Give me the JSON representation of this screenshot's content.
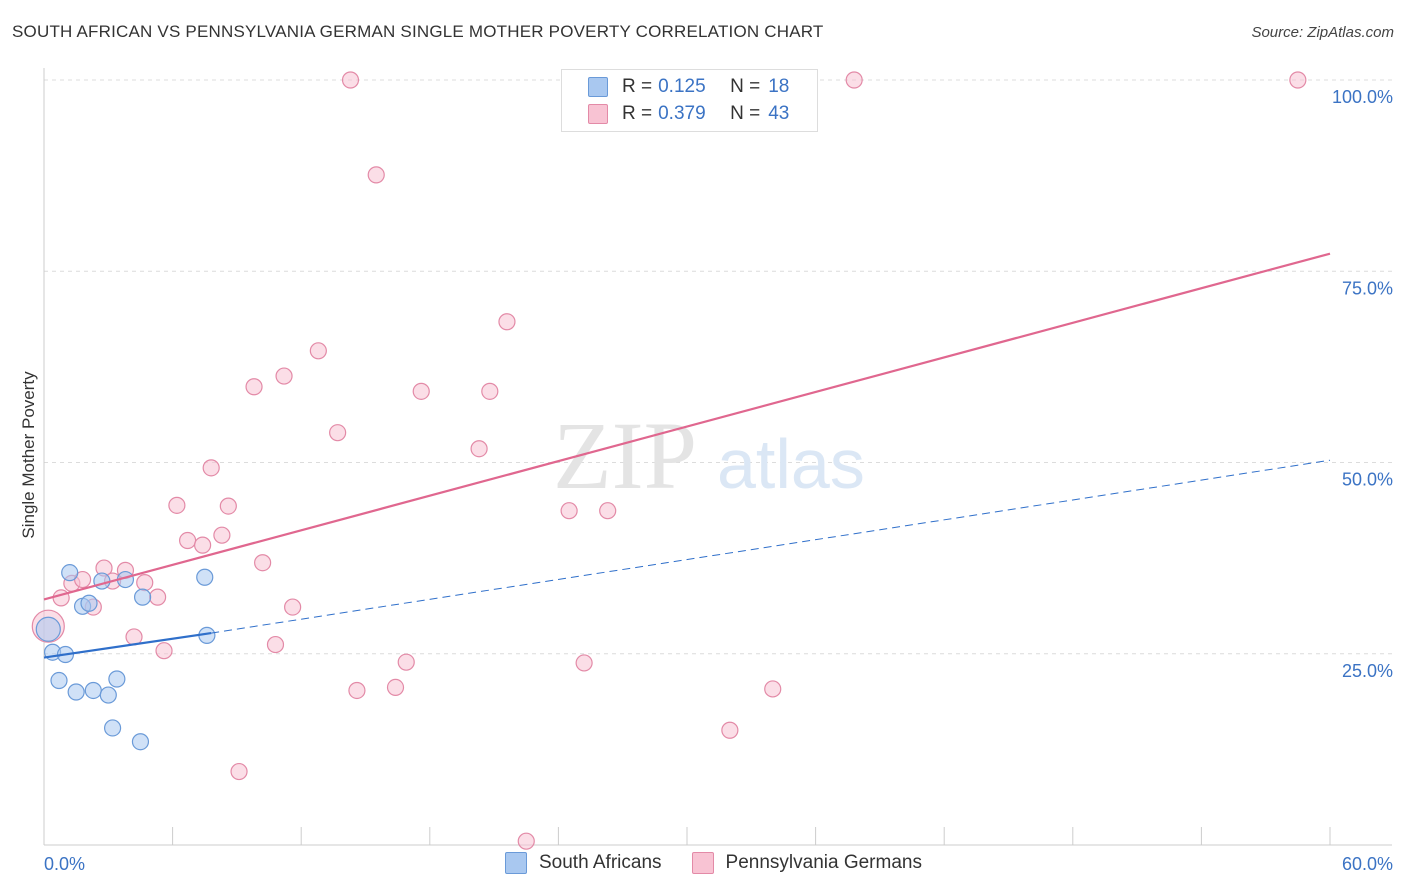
{
  "title": "SOUTH AFRICAN VS PENNSYLVANIA GERMAN SINGLE MOTHER POVERTY CORRELATION CHART",
  "source": "Source: ZipAtlas.com",
  "watermark": {
    "zip": "ZIP",
    "atlas": "atlas"
  },
  "legend": {
    "r_label": "R =",
    "n_label": "N =",
    "rows": [
      {
        "r": "0.125",
        "n": "18",
        "color": "#a9c8f0",
        "border": "#6a9ad8"
      },
      {
        "r": "0.379",
        "n": "43",
        "color": "#f8c3d3",
        "border": "#e38aa7"
      }
    ]
  },
  "chart_data": {
    "type": "scatter",
    "title": "SOUTH AFRICAN VS PENNSYLVANIA GERMAN SINGLE MOTHER POVERTY CORRELATION CHART",
    "xlabel": "",
    "ylabel": "Single Mother Poverty",
    "xlim": [
      0,
      60
    ],
    "ylim": [
      0,
      100
    ],
    "x_tick_labels": [
      "0.0%",
      "60.0%"
    ],
    "y_tick_labels": [
      "25.0%",
      "50.0%",
      "75.0%",
      "100.0%"
    ],
    "y_ticks": [
      25,
      50,
      75,
      100
    ],
    "series": [
      {
        "name": "South Africans",
        "color": "#a9c8f0",
        "stroke": "#6a9ad8",
        "trend_color": "#2f6fca",
        "trend": {
          "x0": 0,
          "y0": 24.5,
          "x1": 7.8,
          "y1": 27.7,
          "dashed_to_x": 60,
          "dashed_to_y": 50.3
        },
        "points": [
          {
            "x": 0.2,
            "y": 28.2
          },
          {
            "x": 0.4,
            "y": 25.2
          },
          {
            "x": 0.7,
            "y": 21.5
          },
          {
            "x": 1.0,
            "y": 24.9
          },
          {
            "x": 1.2,
            "y": 35.6
          },
          {
            "x": 1.5,
            "y": 20.0
          },
          {
            "x": 1.8,
            "y": 31.2
          },
          {
            "x": 2.1,
            "y": 31.6
          },
          {
            "x": 2.3,
            "y": 20.2
          },
          {
            "x": 2.7,
            "y": 34.5
          },
          {
            "x": 3.0,
            "y": 19.6
          },
          {
            "x": 3.2,
            "y": 15.3
          },
          {
            "x": 3.4,
            "y": 21.7
          },
          {
            "x": 3.8,
            "y": 34.7
          },
          {
            "x": 4.5,
            "y": 13.5
          },
          {
            "x": 4.6,
            "y": 32.4
          },
          {
            "x": 7.5,
            "y": 35.0
          },
          {
            "x": 7.6,
            "y": 27.4
          }
        ]
      },
      {
        "name": "Pennsylvania Germans",
        "color": "#f8c3d3",
        "stroke": "#e38aa7",
        "trend_color": "#e0678f",
        "trend": {
          "x0": 0,
          "y0": 32.1,
          "x1": 60,
          "y1": 77.3
        },
        "points": [
          {
            "x": 0.2,
            "y": 28.6
          },
          {
            "x": 0.8,
            "y": 32.3
          },
          {
            "x": 1.3,
            "y": 34.2
          },
          {
            "x": 1.8,
            "y": 34.7
          },
          {
            "x": 2.3,
            "y": 31.1
          },
          {
            "x": 2.8,
            "y": 36.2
          },
          {
            "x": 3.2,
            "y": 34.5
          },
          {
            "x": 3.8,
            "y": 35.9
          },
          {
            "x": 4.2,
            "y": 27.2
          },
          {
            "x": 4.7,
            "y": 34.3
          },
          {
            "x": 5.3,
            "y": 32.4
          },
          {
            "x": 5.6,
            "y": 25.4
          },
          {
            "x": 6.2,
            "y": 44.4
          },
          {
            "x": 6.7,
            "y": 39.8
          },
          {
            "x": 7.4,
            "y": 39.2
          },
          {
            "x": 7.8,
            "y": 49.3
          },
          {
            "x": 8.3,
            "y": 40.5
          },
          {
            "x": 8.6,
            "y": 44.3
          },
          {
            "x": 9.1,
            "y": 9.6
          },
          {
            "x": 9.8,
            "y": 59.9
          },
          {
            "x": 10.2,
            "y": 36.9
          },
          {
            "x": 10.8,
            "y": 26.2
          },
          {
            "x": 11.2,
            "y": 61.3
          },
          {
            "x": 11.6,
            "y": 31.1
          },
          {
            "x": 12.8,
            "y": 64.6
          },
          {
            "x": 13.7,
            "y": 53.9
          },
          {
            "x": 14.3,
            "y": 100.0
          },
          {
            "x": 14.6,
            "y": 20.2
          },
          {
            "x": 15.5,
            "y": 87.6
          },
          {
            "x": 16.4,
            "y": 20.6
          },
          {
            "x": 16.9,
            "y": 23.9
          },
          {
            "x": 17.6,
            "y": 59.3
          },
          {
            "x": 20.3,
            "y": 51.8
          },
          {
            "x": 20.8,
            "y": 59.3
          },
          {
            "x": 21.6,
            "y": 68.4
          },
          {
            "x": 22.5,
            "y": 0.5
          },
          {
            "x": 24.5,
            "y": 43.7
          },
          {
            "x": 25.2,
            "y": 23.8
          },
          {
            "x": 26.3,
            "y": 43.7
          },
          {
            "x": 32.0,
            "y": 15.0
          },
          {
            "x": 34.0,
            "y": 20.4
          },
          {
            "x": 37.8,
            "y": 100.0
          },
          {
            "x": 58.5,
            "y": 100.0
          }
        ]
      }
    ]
  }
}
